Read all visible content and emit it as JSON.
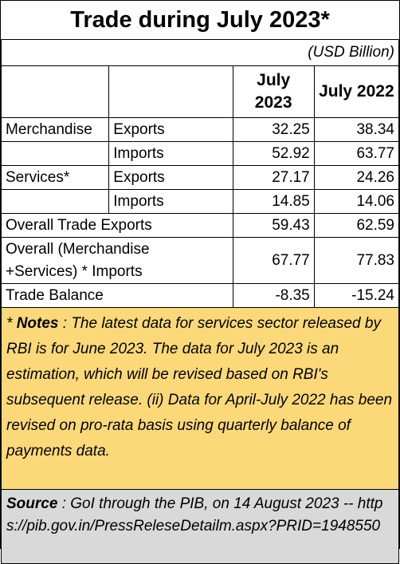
{
  "title": "Trade during July 2023*",
  "unit": "(USD Billion)",
  "columns": [
    "July 2023",
    "July 2022"
  ],
  "rows": [
    {
      "group": "Merchandise",
      "flow": "Exports",
      "v2023": "32.25",
      "v2022": "38.34"
    },
    {
      "group": "",
      "flow": "Imports",
      "v2023": "52.92",
      "v2022": "63.77"
    },
    {
      "group": "Services*",
      "flow": "Exports",
      "v2023": "27.17",
      "v2022": "24.26"
    },
    {
      "group": "",
      "flow": "Imports",
      "v2023": "14.85",
      "v2022": "14.06"
    }
  ],
  "overall_exports": {
    "label": "Overall Trade Exports",
    "v2023": "59.43",
    "v2022": "62.59"
  },
  "overall_imports": {
    "label_line1": "Overall (Merchandise",
    "label_line2": "+Services) * Imports",
    "v2023": "67.77",
    "v2022": "77.83"
  },
  "trade_balance": {
    "label": "Trade Balance",
    "v2023": "-8.35",
    "v2022": "-15.24"
  },
  "notes": {
    "prefix": "* ",
    "heading": "Notes",
    "text": " : The latest data for services sector released by RBI is for June 2023. The data for July 2023 is an estimation, which will be revised based on RBI's subsequent release. (ii) Data for April-July 2022 has been revised on pro-rata basis using quarterly balance of payments data."
  },
  "source": {
    "heading": "Source",
    "text": " : GoI through the PIB, on 14 August 2023 -- https://pib.gov.in/PressReleseDetailm.aspx?PRID=1948550"
  }
}
